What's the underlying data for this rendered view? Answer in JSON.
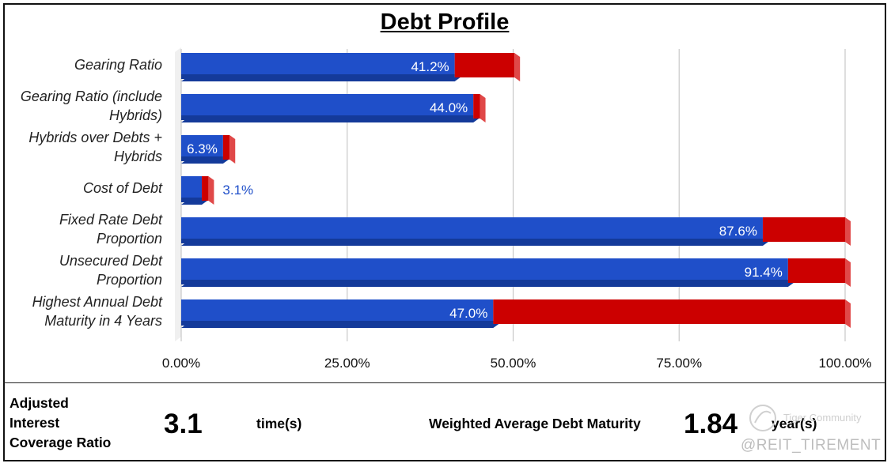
{
  "chart_data": {
    "type": "bar",
    "orientation": "horizontal",
    "stacked": true,
    "title": "Debt Profile",
    "categories": [
      "Gearing Ratio",
      "Gearing Ratio (include Hybrids)",
      "Hybrids over Debts + Hybrids",
      "Cost of Debt",
      "Fixed Rate Debt Proportion",
      "Unsecured Debt Proportion",
      "Highest Annual Debt Maturity in 4 Years"
    ],
    "category_lines": [
      [
        "Gearing Ratio"
      ],
      [
        "Gearing Ratio (include",
        "Hybrids)"
      ],
      [
        "Hybrids over Debts +",
        "Hybrids"
      ],
      [
        "Cost of Debt"
      ],
      [
        "Fixed Rate Debt",
        "Proportion"
      ],
      [
        "Unsecured Debt",
        "Proportion"
      ],
      [
        "Highest Annual Debt",
        "Maturity in 4 Years"
      ]
    ],
    "series": [
      {
        "values": [
          41.2,
          44.0,
          6.3,
          3.1,
          87.6,
          91.4,
          47.0
        ],
        "color": "#1f4fc9"
      },
      {
        "values": [
          9.0,
          1.0,
          1.0,
          1.0,
          12.4,
          8.6,
          53.0
        ],
        "color": "#cc0000"
      }
    ],
    "data_labels": [
      "41.2%",
      "44.0%",
      "6.3%",
      "3.1%",
      "87.6%",
      "91.4%",
      "47.0%"
    ],
    "data_label_inside": [
      true,
      true,
      true,
      false,
      true,
      true,
      true
    ],
    "x_ticks": [
      0,
      25,
      50,
      75,
      100
    ],
    "x_tick_labels": [
      "0.00%",
      "25.00%",
      "50.00%",
      "75.00%",
      "100.00%"
    ],
    "xlim": [
      0,
      100
    ],
    "grid": true,
    "legend": "none"
  },
  "footer": {
    "icr_label_lines": [
      "Adjusted",
      "Interest",
      "Coverage Ratio"
    ],
    "icr_value": "3.1",
    "icr_unit": "time(s)",
    "wadm_label": "Weighted Average Debt Maturity",
    "wadm_value": "1.84",
    "wadm_unit": "year(s)"
  },
  "watermark": {
    "brand": "Tiger Community",
    "handle": "@REIT_TIREMENT"
  },
  "colors": {
    "bar_primary": "#1f4fc9",
    "bar_primary_dark": "#143a9a",
    "bar_secondary": "#cc0000",
    "bar_secondary_side": "#e04848",
    "gridline": "#c8c8c8"
  }
}
